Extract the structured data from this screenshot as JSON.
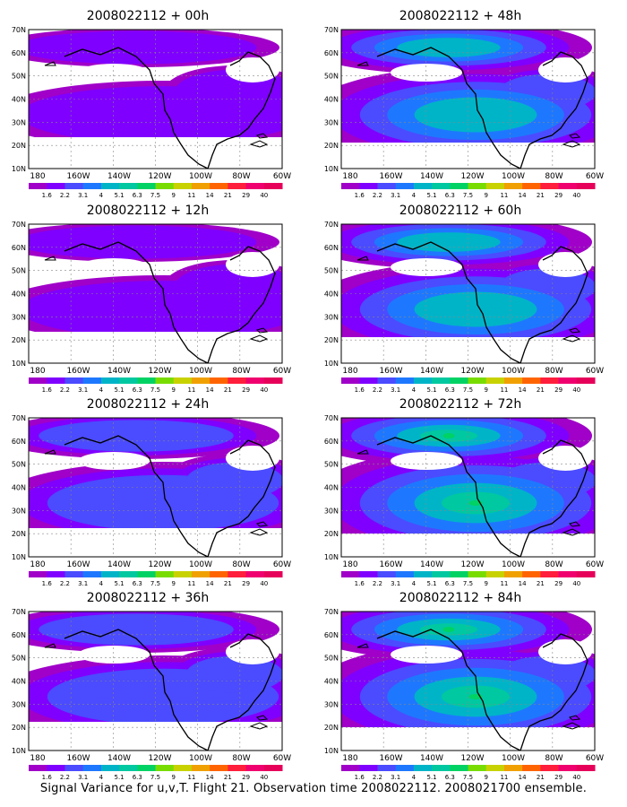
{
  "footer": "Signal Variance for u,v,T. Flight 21. Observation time 2008022112. 2008021700 ensemble.",
  "axes": {
    "lat_labels": [
      "70N",
      "60N",
      "50N",
      "40N",
      "30N",
      "20N",
      "10N"
    ],
    "lon_labels": [
      "180",
      "160W",
      "140W",
      "120W",
      "100W",
      "80W",
      "60W"
    ]
  },
  "colorbar": {
    "labels": [
      "1.6",
      "2.2",
      "3.1",
      "4",
      "5.1",
      "6.3",
      "7.5",
      "9",
      "11",
      "14",
      "21",
      "29",
      "40"
    ],
    "colors": [
      "#a000c8",
      "#7f00ff",
      "#4b4bff",
      "#1e78ff",
      "#00b4c8",
      "#00c8a0",
      "#00d264",
      "#78dc00",
      "#c8d200",
      "#f0a000",
      "#ff6400",
      "#ff1e3c",
      "#f0006e",
      "#e6005a"
    ]
  },
  "panels": [
    {
      "title": "2008022112 + 00h",
      "level": 0
    },
    {
      "title": "2008022112 + 48h",
      "level": 2
    },
    {
      "title": "2008022112 + 12h",
      "level": 0
    },
    {
      "title": "2008022112 + 60h",
      "level": 2
    },
    {
      "title": "2008022112 + 24h",
      "level": 1
    },
    {
      "title": "2008022112 + 72h",
      "level": 3
    },
    {
      "title": "2008022112 + 36h",
      "level": 1
    },
    {
      "title": "2008022112 + 84h",
      "level": 3
    }
  ]
}
